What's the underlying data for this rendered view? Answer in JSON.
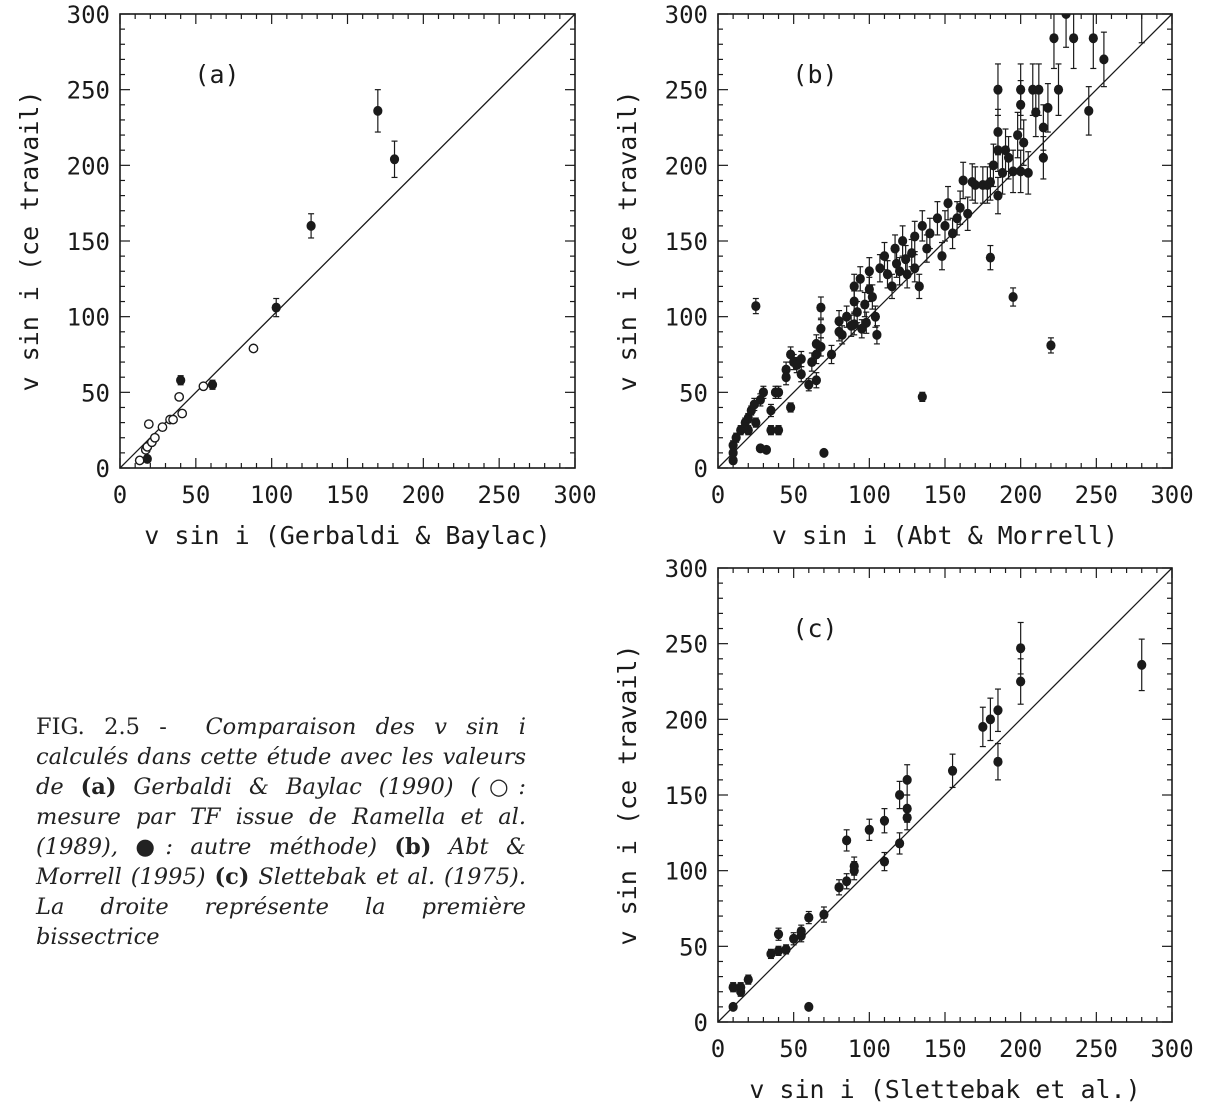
{
  "figure_label": "FIG. 2.5 -",
  "caption": [
    {
      "t": "Comparaison des ",
      "s": "i"
    },
    {
      "t": "v sin i",
      "s": "i"
    },
    {
      "t": " calculés dans cette étude avec les valeurs de ",
      "s": "i"
    },
    {
      "t": "(a)",
      "s": "b"
    },
    {
      "t": " Gerbaldi & Baylac (1990) (",
      "s": "i"
    },
    {
      "t": "○",
      "s": "n"
    },
    {
      "t": ": mesure par TF issue de Ramella et al. (1989), ",
      "s": "i"
    },
    {
      "t": "●",
      "s": "n"
    },
    {
      "t": ": autre méthode) ",
      "s": "i"
    },
    {
      "t": "(b)",
      "s": "b"
    },
    {
      "t": " Abt & Morrell (1995) ",
      "s": "i"
    },
    {
      "t": "(c)",
      "s": "b"
    },
    {
      "t": " Slettebak et al. (1975). La droite représente la première bissectrice",
      "s": "i"
    }
  ],
  "chart_data": [
    {
      "id": "a",
      "type": "scatter",
      "panel_label": "(a)",
      "xlabel": "v sin i (Gerbaldi & Baylac)",
      "ylabel": "v sin i (ce travail)",
      "xlim": [
        0,
        300
      ],
      "ylim": [
        0,
        300
      ],
      "xticks": [
        0,
        50,
        100,
        150,
        200,
        250,
        300
      ],
      "yticks": [
        0,
        50,
        100,
        150,
        200,
        250,
        300
      ],
      "diagonal": true,
      "series": [
        {
          "marker": "open",
          "points": [
            [
              13,
              5
            ],
            [
              17,
              12
            ],
            [
              18,
              14
            ],
            [
              19,
              29
            ],
            [
              21,
              17
            ],
            [
              23,
              20
            ],
            [
              28,
              27
            ],
            [
              33,
              32
            ],
            [
              35,
              32
            ],
            [
              39,
              47
            ],
            [
              41,
              36
            ],
            [
              55,
              54
            ],
            [
              88,
              79
            ]
          ]
        },
        {
          "marker": "filled",
          "points": [
            [
              18,
              6,
              2
            ],
            [
              40,
              58,
              3
            ],
            [
              61,
              55,
              3
            ],
            [
              103,
              106,
              6
            ],
            [
              126,
              160,
              8
            ],
            [
              170,
              236,
              14
            ],
            [
              181,
              204,
              12
            ]
          ]
        }
      ]
    },
    {
      "id": "b",
      "type": "scatter",
      "panel_label": "(b)",
      "xlabel": "v sin i (Abt & Morrell)",
      "ylabel": "v sin i (ce travail)",
      "xlim": [
        0,
        300
      ],
      "ylim": [
        0,
        300
      ],
      "xticks": [
        0,
        50,
        100,
        150,
        200,
        250,
        300
      ],
      "yticks": [
        0,
        50,
        100,
        150,
        200,
        250,
        300
      ],
      "diagonal": true,
      "series": [
        {
          "marker": "filled",
          "points": [
            [
              10,
              5,
              2
            ],
            [
              10,
              10,
              3
            ],
            [
              10,
              15,
              3
            ],
            [
              12,
              20,
              3
            ],
            [
              15,
              25,
              3
            ],
            [
              18,
              30,
              3
            ],
            [
              20,
              25,
              3
            ],
            [
              20,
              33,
              3
            ],
            [
              22,
              38,
              3
            ],
            [
              24,
              42,
              4
            ],
            [
              25,
              30,
              3
            ],
            [
              25,
              107,
              5
            ],
            [
              28,
              45,
              4
            ],
            [
              28,
              13,
              2
            ],
            [
              30,
              50,
              4
            ],
            [
              32,
              12,
              2
            ],
            [
              35,
              25,
              3
            ],
            [
              35,
              38,
              4
            ],
            [
              38,
              50,
              4
            ],
            [
              40,
              25,
              3
            ],
            [
              40,
              50,
              4
            ],
            [
              45,
              65,
              5
            ],
            [
              45,
              60,
              5
            ],
            [
              48,
              75,
              5
            ],
            [
              48,
              40,
              3
            ],
            [
              50,
              70,
              5
            ],
            [
              52,
              68,
              5
            ],
            [
              55,
              62,
              5
            ],
            [
              55,
              72,
              5
            ],
            [
              60,
              55,
              4
            ],
            [
              62,
              70,
              6
            ],
            [
              65,
              82,
              6
            ],
            [
              65,
              75,
              6
            ],
            [
              65,
              58,
              5
            ],
            [
              68,
              92,
              6
            ],
            [
              68,
              106,
              7
            ],
            [
              68,
              80,
              6
            ],
            [
              70,
              10,
              2
            ],
            [
              75,
              75,
              6
            ],
            [
              80,
              97,
              7
            ],
            [
              80,
              90,
              6
            ],
            [
              82,
              88,
              6
            ],
            [
              85,
              100,
              7
            ],
            [
              88,
              94,
              7
            ],
            [
              90,
              120,
              8
            ],
            [
              90,
              110,
              7
            ],
            [
              90,
              95,
              7
            ],
            [
              92,
              103,
              7
            ],
            [
              94,
              125,
              8
            ],
            [
              95,
              92,
              6
            ],
            [
              97,
              108,
              8
            ],
            [
              98,
              96,
              7
            ],
            [
              100,
              130,
              9
            ],
            [
              100,
              118,
              8
            ],
            [
              102,
              113,
              8
            ],
            [
              104,
              100,
              7
            ],
            [
              105,
              88,
              6
            ],
            [
              107,
              132,
              9
            ],
            [
              110,
              140,
              9
            ],
            [
              112,
              128,
              9
            ],
            [
              115,
              120,
              8
            ],
            [
              117,
              145,
              9
            ],
            [
              118,
              135,
              9
            ],
            [
              120,
              130,
              9
            ],
            [
              122,
              150,
              10
            ],
            [
              124,
              138,
              9
            ],
            [
              125,
              128,
              9
            ],
            [
              128,
              142,
              9
            ],
            [
              130,
              153,
              10
            ],
            [
              130,
              132,
              9
            ],
            [
              133,
              120,
              8
            ],
            [
              135,
              47,
              3
            ],
            [
              135,
              160,
              10
            ],
            [
              138,
              145,
              9
            ],
            [
              140,
              155,
              10
            ],
            [
              145,
              165,
              11
            ],
            [
              148,
              140,
              9
            ],
            [
              150,
              160,
              10
            ],
            [
              152,
              175,
              11
            ],
            [
              155,
              155,
              10
            ],
            [
              158,
              165,
              11
            ],
            [
              160,
              172,
              11
            ],
            [
              162,
              190,
              12
            ],
            [
              165,
              168,
              11
            ],
            [
              168,
              189,
              12
            ],
            [
              170,
              187,
              12
            ],
            [
              175,
              187,
              12
            ],
            [
              178,
              187,
              12
            ],
            [
              180,
              189,
              12
            ],
            [
              180,
              139,
              8
            ],
            [
              182,
              200,
              14
            ],
            [
              185,
              180,
              12
            ],
            [
              185,
              210,
              14
            ],
            [
              185,
              222,
              15
            ],
            [
              185,
              250,
              17
            ],
            [
              188,
              195,
              14
            ],
            [
              190,
              210,
              14
            ],
            [
              192,
              205,
              14
            ],
            [
              195,
              113,
              6
            ],
            [
              195,
              196,
              14
            ],
            [
              198,
              220,
              15
            ],
            [
              200,
              250,
              17
            ],
            [
              200,
              240,
              16
            ],
            [
              200,
              196,
              14
            ],
            [
              202,
              215,
              15
            ],
            [
              205,
              195,
              14
            ],
            [
              208,
              250,
              17
            ],
            [
              210,
              235,
              16
            ],
            [
              212,
              250,
              17
            ],
            [
              215,
              205,
              14
            ],
            [
              215,
              225,
              15
            ],
            [
              218,
              238,
              16
            ],
            [
              220,
              81,
              5
            ],
            [
              222,
              284,
              20
            ],
            [
              225,
              250,
              17
            ],
            [
              230,
              300,
              22
            ],
            [
              235,
              284,
              20
            ],
            [
              245,
              236,
              16
            ],
            [
              248,
              284,
              20
            ],
            [
              255,
              270,
              18
            ],
            [
              280,
              303,
              22
            ]
          ]
        }
      ]
    },
    {
      "id": "c",
      "type": "scatter",
      "panel_label": "(c)",
      "xlabel": "v sin i (Slettebak et al.)",
      "ylabel": "v sin i (ce travail)",
      "xlim": [
        0,
        300
      ],
      "ylim": [
        0,
        300
      ],
      "xticks": [
        0,
        50,
        100,
        150,
        200,
        250,
        300
      ],
      "yticks": [
        0,
        50,
        100,
        150,
        200,
        250,
        300
      ],
      "diagonal": true,
      "series": [
        {
          "marker": "filled",
          "points": [
            [
              10,
              10,
              2
            ],
            [
              10,
              23,
              3
            ],
            [
              15,
              20,
              3
            ],
            [
              15,
              23,
              3
            ],
            [
              20,
              28,
              3
            ],
            [
              35,
              45,
              3
            ],
            [
              40,
              47,
              3
            ],
            [
              40,
              58,
              4
            ],
            [
              45,
              48,
              3
            ],
            [
              50,
              55,
              4
            ],
            [
              55,
              57,
              4
            ],
            [
              55,
              60,
              4
            ],
            [
              60,
              10,
              2
            ],
            [
              60,
              69,
              4
            ],
            [
              70,
              71,
              5
            ],
            [
              80,
              89,
              5
            ],
            [
              85,
              93,
              5
            ],
            [
              85,
              120,
              7
            ],
            [
              90,
              100,
              6
            ],
            [
              90,
              103,
              6
            ],
            [
              100,
              127,
              7
            ],
            [
              110,
              106,
              6
            ],
            [
              110,
              133,
              8
            ],
            [
              120,
              150,
              9
            ],
            [
              120,
              118,
              7
            ],
            [
              125,
              160,
              10
            ],
            [
              125,
              141,
              9
            ],
            [
              125,
              135,
              8
            ],
            [
              155,
              166,
              11
            ],
            [
              175,
              195,
              13
            ],
            [
              180,
              200,
              14
            ],
            [
              185,
              172,
              12
            ],
            [
              185,
              206,
              14
            ],
            [
              200,
              225,
              15
            ],
            [
              200,
              247,
              17
            ],
            [
              280,
              236,
              17
            ]
          ]
        }
      ]
    }
  ]
}
